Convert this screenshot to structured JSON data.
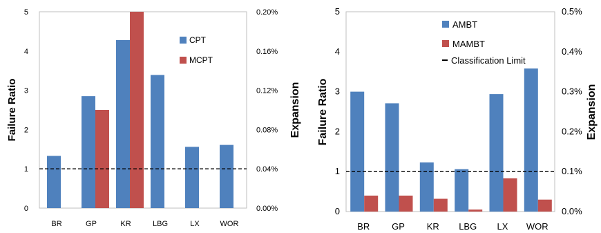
{
  "chart_data": [
    {
      "type": "bar",
      "categories": [
        "BR",
        "GP",
        "KR",
        "LBG",
        "LX",
        "WOR"
      ],
      "series": [
        {
          "name": "CPT",
          "axis": "left",
          "color": "#4F81BD",
          "values": [
            1.33,
            2.85,
            4.28,
            3.39,
            1.56,
            1.61
          ]
        },
        {
          "name": "MCPT",
          "axis": "right",
          "color": "#C0504D",
          "values": [
            0.0,
            0.001,
            0.002,
            0.0,
            0.0,
            0.0
          ]
        }
      ],
      "reference_line": {
        "axis": "left",
        "value": 1,
        "style": "dashed"
      },
      "ylabel": "Failure Ratio",
      "y2label": "Expansion",
      "ylim": [
        0,
        5
      ],
      "y2lim": [
        0,
        0.002
      ],
      "yticks": [
        "0",
        "1",
        "2",
        "3",
        "4",
        "5"
      ],
      "y2ticks": [
        "0.00%",
        "0.04%",
        "0.08%",
        "0.12%",
        "0.16%",
        "0.20%"
      ],
      "legend": [
        "CPT",
        "MCPT"
      ],
      "legend_position": "top-right",
      "grid": false
    },
    {
      "type": "bar",
      "categories": [
        "BR",
        "GP",
        "KR",
        "LBG",
        "LX",
        "WOR"
      ],
      "series": [
        {
          "name": "AMBT",
          "axis": "left",
          "color": "#4F81BD",
          "values": [
            3.0,
            2.71,
            1.23,
            1.06,
            2.94,
            3.58
          ]
        },
        {
          "name": "MAMBT",
          "axis": "right",
          "color": "#C0504D",
          "values": [
            0.0004,
            0.0004,
            0.00032,
            5e-05,
            0.00083,
            0.0003
          ]
        }
      ],
      "reference_line": {
        "axis": "left",
        "value": 1,
        "style": "dashed",
        "label": "Classification Limit"
      },
      "ylabel": "Failure Ratio",
      "y2label": "Expansion",
      "ylim": [
        0,
        5
      ],
      "y2lim": [
        0,
        0.005
      ],
      "yticks": [
        "0",
        "1",
        "2",
        "3",
        "4",
        "5"
      ],
      "y2ticks": [
        "0.0%",
        "0.1%",
        "0.2%",
        "0.3%",
        "0.4%",
        "0.5%"
      ],
      "legend": [
        "AMBT",
        "MAMBT",
        "Classification Limit"
      ],
      "legend_position": "top-left",
      "grid": false
    }
  ]
}
